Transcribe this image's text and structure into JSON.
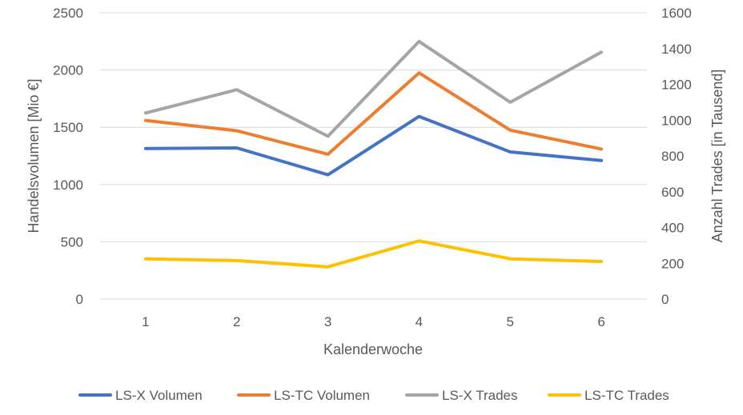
{
  "chart_data": {
    "type": "line",
    "categories": [
      "1",
      "2",
      "3",
      "4",
      "5",
      "6"
    ],
    "xlabel": "Kalenderwoche",
    "ylabel": "Handelsvolumen [Mio €]",
    "y2label": "Anzahl Trades [in Tausend]",
    "ylim": [
      0,
      2500
    ],
    "y2lim": [
      0,
      1600
    ],
    "yticks": [
      "0",
      "500",
      "1000",
      "1500",
      "2000",
      "2500"
    ],
    "y2ticks": [
      "0",
      "200",
      "400",
      "600",
      "800",
      "1000",
      "1200",
      "1400",
      "1600"
    ],
    "grid": true,
    "legend_position": "bottom",
    "series": [
      {
        "name": "LS-X Volumen",
        "axis": "left",
        "color": "#4472c4",
        "values": [
          1315,
          1320,
          1085,
          1595,
          1285,
          1210
        ]
      },
      {
        "name": "LS-TC Volumen",
        "axis": "left",
        "color": "#ed7d31",
        "values": [
          1560,
          1470,
          1265,
          1975,
          1475,
          1310
        ]
      },
      {
        "name": "LS-X Trades",
        "axis": "right",
        "color": "#a5a5a5",
        "values": [
          1040,
          1170,
          910,
          1440,
          1100,
          1380
        ]
      },
      {
        "name": "LS-TC Trades",
        "axis": "right",
        "color": "#ffc000",
        "values": [
          225,
          215,
          180,
          325,
          225,
          210
        ]
      }
    ]
  }
}
